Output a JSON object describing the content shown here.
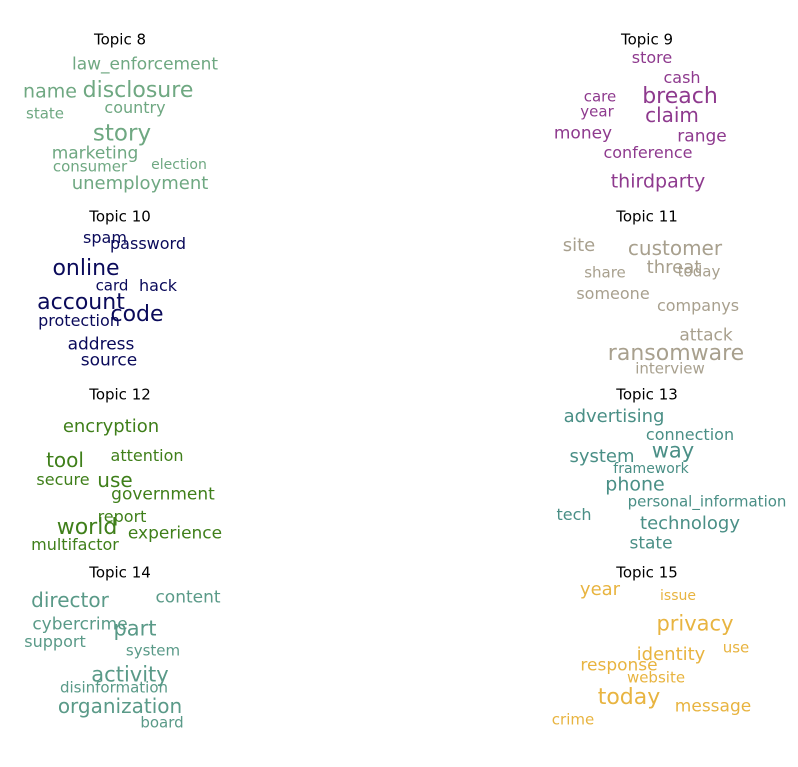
{
  "chart_data": {
    "type": "wordcloud",
    "panels": [
      {
        "title": "Topic 8",
        "color": "#6fa882",
        "words": [
          {
            "text": "law_enforcement",
            "weight": 0.55
          },
          {
            "text": "name",
            "weight": 0.68
          },
          {
            "text": "disclosure",
            "weight": 0.85
          },
          {
            "text": "country",
            "weight": 0.5
          },
          {
            "text": "state",
            "weight": 0.45
          },
          {
            "text": "story",
            "weight": 0.95
          },
          {
            "text": "marketing",
            "weight": 0.55
          },
          {
            "text": "consumer",
            "weight": 0.42
          },
          {
            "text": "election",
            "weight": 0.4
          },
          {
            "text": "unemployment",
            "weight": 0.62
          }
        ]
      },
      {
        "title": "Topic 9",
        "color": "#8e3a8e",
        "words": [
          {
            "text": "store",
            "weight": 0.52
          },
          {
            "text": "cash",
            "weight": 0.5
          },
          {
            "text": "care",
            "weight": 0.45
          },
          {
            "text": "breach",
            "weight": 0.88
          },
          {
            "text": "year",
            "weight": 0.42
          },
          {
            "text": "claim",
            "weight": 0.75
          },
          {
            "text": "money",
            "weight": 0.58
          },
          {
            "text": "range",
            "weight": 0.55
          },
          {
            "text": "conference",
            "weight": 0.52
          },
          {
            "text": "thirdparty",
            "weight": 0.66
          }
        ]
      },
      {
        "title": "Topic 10",
        "color": "#0a0a5a",
        "words": [
          {
            "text": "spam",
            "weight": 0.5
          },
          {
            "text": "password",
            "weight": 0.52
          },
          {
            "text": "online",
            "weight": 0.85
          },
          {
            "text": "card",
            "weight": 0.45
          },
          {
            "text": "hack",
            "weight": 0.47
          },
          {
            "text": "account",
            "weight": 0.85
          },
          {
            "text": "code",
            "weight": 0.88
          },
          {
            "text": "protection",
            "weight": 0.52
          },
          {
            "text": "address",
            "weight": 0.55
          },
          {
            "text": "source",
            "weight": 0.55
          }
        ]
      },
      {
        "title": "Topic 11",
        "color": "#a8a08e",
        "words": [
          {
            "text": "site",
            "weight": 0.62
          },
          {
            "text": "customer",
            "weight": 0.77
          },
          {
            "text": "threat",
            "weight": 0.62
          },
          {
            "text": "share",
            "weight": 0.42
          },
          {
            "text": "today",
            "weight": 0.42
          },
          {
            "text": "someone",
            "weight": 0.5
          },
          {
            "text": "companys",
            "weight": 0.5
          },
          {
            "text": "attack",
            "weight": 0.55
          },
          {
            "text": "ransomware",
            "weight": 0.85
          },
          {
            "text": "interview",
            "weight": 0.45
          }
        ]
      },
      {
        "title": "Topic 12",
        "color": "#3f7f1a",
        "words": [
          {
            "text": "encryption",
            "weight": 0.62
          },
          {
            "text": "tool",
            "weight": 0.78
          },
          {
            "text": "attention",
            "weight": 0.52
          },
          {
            "text": "use",
            "weight": 0.72
          },
          {
            "text": "secure",
            "weight": 0.52
          },
          {
            "text": "government",
            "weight": 0.55
          },
          {
            "text": "report",
            "weight": 0.52
          },
          {
            "text": "world",
            "weight": 0.88
          },
          {
            "text": "experience",
            "weight": 0.55
          },
          {
            "text": "multifactor",
            "weight": 0.5
          }
        ]
      },
      {
        "title": "Topic 13",
        "color": "#4a8f86",
        "words": [
          {
            "text": "advertising",
            "weight": 0.62
          },
          {
            "text": "connection",
            "weight": 0.52
          },
          {
            "text": "way",
            "weight": 0.82
          },
          {
            "text": "system",
            "weight": 0.62
          },
          {
            "text": "framework",
            "weight": 0.4
          },
          {
            "text": "phone",
            "weight": 0.7
          },
          {
            "text": "personal_information",
            "weight": 0.42
          },
          {
            "text": "tech",
            "weight": 0.5
          },
          {
            "text": "technology",
            "weight": 0.62
          },
          {
            "text": "state",
            "weight": 0.55
          }
        ]
      },
      {
        "title": "Topic 14",
        "color": "#5a9a88",
        "words": [
          {
            "text": "director",
            "weight": 0.72
          },
          {
            "text": "content",
            "weight": 0.55
          },
          {
            "text": "cybercrime",
            "weight": 0.58
          },
          {
            "text": "part",
            "weight": 0.82
          },
          {
            "text": "support",
            "weight": 0.52
          },
          {
            "text": "system",
            "weight": 0.45
          },
          {
            "text": "activity",
            "weight": 0.82
          },
          {
            "text": "disinformation",
            "weight": 0.45
          },
          {
            "text": "organization",
            "weight": 0.77
          },
          {
            "text": "board",
            "weight": 0.42
          }
        ]
      },
      {
        "title": "Topic 15",
        "color": "#e8b440",
        "words": [
          {
            "text": "year",
            "weight": 0.62
          },
          {
            "text": "issue",
            "weight": 0.38
          },
          {
            "text": "privacy",
            "weight": 0.82
          },
          {
            "text": "identity",
            "weight": 0.62
          },
          {
            "text": "use",
            "weight": 0.45
          },
          {
            "text": "response",
            "weight": 0.55
          },
          {
            "text": "website",
            "weight": 0.42
          },
          {
            "text": "today",
            "weight": 0.85
          },
          {
            "text": "message",
            "weight": 0.58
          },
          {
            "text": "crime",
            "weight": 0.45
          }
        ]
      }
    ]
  }
}
